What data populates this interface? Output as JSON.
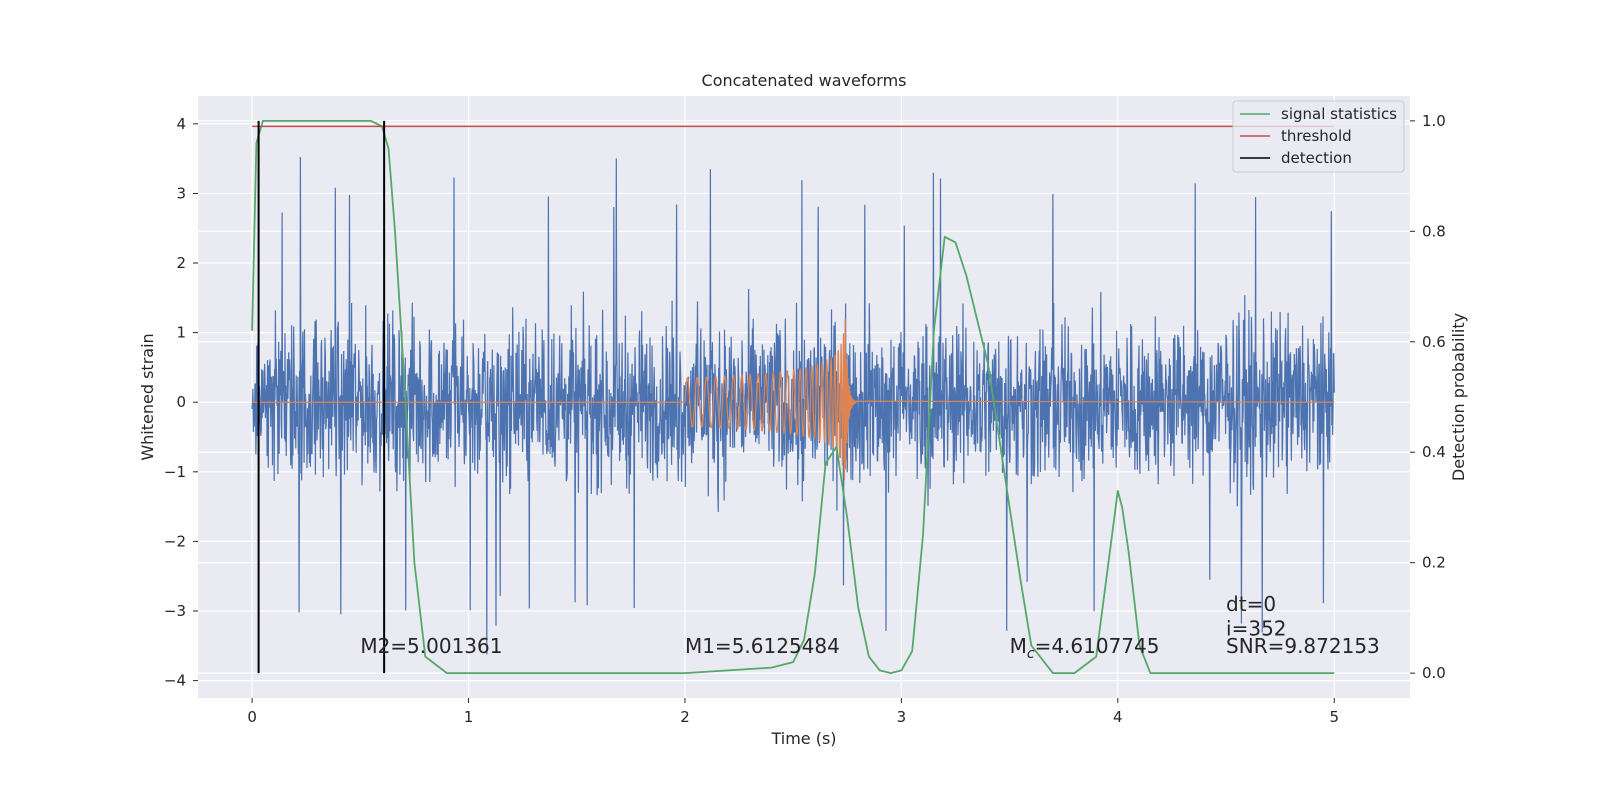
{
  "chart_data": {
    "type": "line",
    "title": "Concatenated waveforms",
    "xlabel": "Time (s)",
    "ylabel_left": "Whitened strain",
    "ylabel_right": "Detection probability",
    "xlim": [
      -0.25,
      5.35
    ],
    "ylim_left": [
      -4.25,
      4.4
    ],
    "ylim_right": [
      -0.045,
      1.045
    ],
    "x_ticks": [
      "0",
      "1",
      "2",
      "3",
      "4",
      "5"
    ],
    "y_ticks_left": [
      "4",
      "3",
      "2",
      "1",
      "0",
      "−1",
      "−2",
      "−3",
      "−4"
    ],
    "y_ticks_right": [
      "1.0",
      "0.8",
      "0.6",
      "0.4",
      "0.2",
      "0.0"
    ],
    "grid": true,
    "legend_position": "top-right",
    "legend": [
      "signal statistics",
      "threshold",
      "detection"
    ],
    "colors": {
      "strain": "#4c72b0",
      "template": "#dd8452",
      "signal_statistics": "#55a868",
      "threshold": "#c44e52",
      "detection": "#000000",
      "background": "#eaeaf2",
      "grid": "#ffffff"
    },
    "series": [
      {
        "name": "signal statistics",
        "axis": "right",
        "x": [
          0.0,
          0.02,
          0.05,
          0.1,
          0.3,
          0.55,
          0.6,
          0.63,
          0.66,
          0.7,
          0.75,
          0.8,
          0.9,
          1.2,
          1.6,
          2.0,
          2.2,
          2.4,
          2.5,
          2.55,
          2.6,
          2.65,
          2.7,
          2.75,
          2.8,
          2.85,
          2.9,
          2.95,
          3.0,
          3.05,
          3.1,
          3.15,
          3.2,
          3.25,
          3.3,
          3.4,
          3.5,
          3.55,
          3.6,
          3.7,
          3.8,
          3.9,
          3.95,
          4.0,
          4.02,
          4.05,
          4.1,
          4.15,
          4.2,
          4.5,
          5.0
        ],
        "y": [
          0.62,
          0.96,
          1.0,
          1.0,
          1.0,
          1.0,
          0.99,
          0.95,
          0.8,
          0.55,
          0.2,
          0.03,
          0.0,
          0.0,
          0.0,
          0.0,
          0.005,
          0.01,
          0.02,
          0.06,
          0.18,
          0.38,
          0.41,
          0.28,
          0.12,
          0.03,
          0.005,
          0.0,
          0.005,
          0.04,
          0.25,
          0.62,
          0.79,
          0.78,
          0.72,
          0.56,
          0.3,
          0.17,
          0.05,
          0.0,
          0.0,
          0.03,
          0.18,
          0.33,
          0.3,
          0.22,
          0.05,
          0.0,
          0.0,
          0.0,
          0.0
        ]
      },
      {
        "name": "threshold",
        "axis": "right",
        "x": [
          0.0,
          5.0
        ],
        "y": [
          0.99,
          0.99
        ]
      },
      {
        "name": "detection",
        "axis": "right",
        "x": [
          0.03,
          0.61
        ],
        "y_range": [
          0.0,
          1.0
        ]
      },
      {
        "axis": "left",
        "envelope": {
          "x": [
            0.0,
            1.0,
            2.0,
            3.0,
            4.0,
            5.0
          ],
          "amplitude_max": [
            3.5,
            3.7,
            3.5,
            3.3,
            3.4,
            3.4
          ]
        }
      },
      {
        "axis": "left",
        "chirp": {
          "t_start": 2.0,
          "t_merger": 2.74,
          "amp_start": 0.35,
          "amp_peak": 1.3
        }
      }
    ],
    "annotations": [
      {
        "text_pre": "M2=5.001361",
        "x": 0.5,
        "y": -3.6
      },
      {
        "text_pre": "M1=5.6125484",
        "x": 2.0,
        "y": -3.6
      },
      {
        "text_pre": "M",
        "sub": "c",
        "text_post": "=4.6107745",
        "x": 3.5,
        "y": -3.6
      },
      {
        "text_pre": "dt=0",
        "x": 4.5,
        "y": -3.0
      },
      {
        "text_pre": "i=352",
        "x": 4.5,
        "y": -3.35
      },
      {
        "text_pre": "SNR=9.872153",
        "x": 4.5,
        "y": -3.6
      }
    ]
  }
}
